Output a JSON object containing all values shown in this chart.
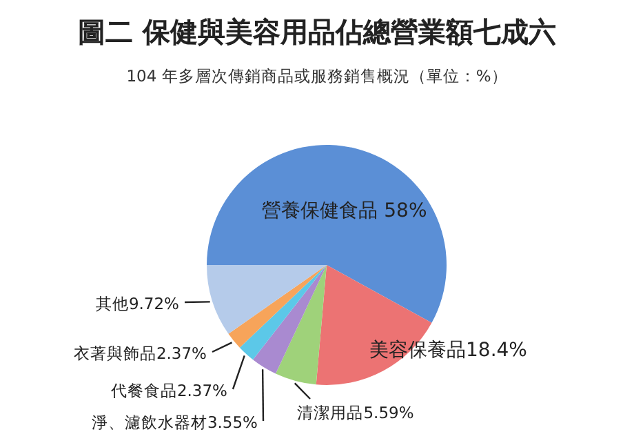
{
  "chart_data": {
    "type": "pie",
    "title": "圖二 保健與美容用品佔總營業額七成六",
    "subtitle": "104 年多層次傳銷商品或服務銷售概況（單位：%）",
    "categories": [
      "營養保健食品",
      "美容保養品",
      "清潔用品",
      "淨、濾飲水器材",
      "代餐食品",
      "衣著與飾品",
      "其他"
    ],
    "values": [
      58,
      18.4,
      5.59,
      3.55,
      2.37,
      2.37,
      9.72
    ],
    "value_labels": [
      " 58%",
      "18.4%",
      "5.59%",
      "3.55%",
      "2.37%",
      "2.37%",
      "9.72%"
    ],
    "colors": [
      "#5b8fd6",
      "#ec7373",
      "#9fd27a",
      "#a98ad0",
      "#5cc8e8",
      "#f7a45a",
      "#b5cbea"
    ]
  }
}
